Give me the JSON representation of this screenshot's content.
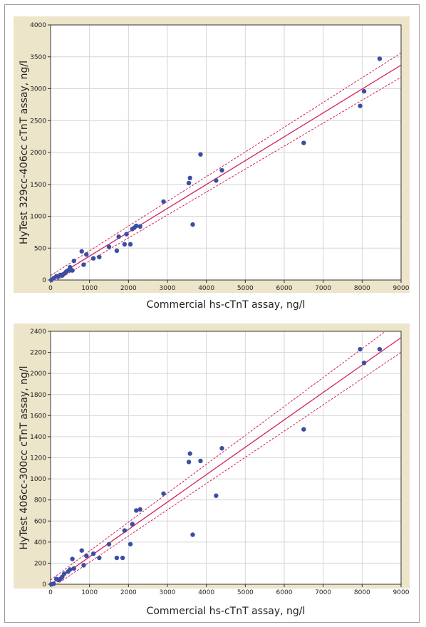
{
  "chart_data": [
    {
      "type": "scatter",
      "xlabel": "Commercial hs-cTnT assay, ng/l",
      "ylabel": "HyTest 329cc-406cc cTnT assay, ng/l",
      "xlim": [
        0,
        9000
      ],
      "ylim": [
        0,
        4000
      ],
      "xticks": [
        "0",
        "1000",
        "2000",
        "3000",
        "4000",
        "5000",
        "6000",
        "7000",
        "8000",
        "9000"
      ],
      "yticks": [
        "0",
        "500",
        "1000",
        "1500",
        "2000",
        "2500",
        "3000",
        "3500",
        "4000"
      ],
      "grid": true,
      "colors": {
        "points": "#3a4fa3",
        "fit": "#d2215a",
        "background": "#ede5c9"
      },
      "fit_line": {
        "x": [
          0,
          9000
        ],
        "y": [
          0,
          3370
        ]
      },
      "confidence_band": {
        "upper": {
          "x": [
            0,
            9000
          ],
          "y": [
            70,
            3560
          ]
        },
        "lower": {
          "x": [
            0,
            9000
          ],
          "y": [
            -60,
            3180
          ]
        }
      },
      "points": {
        "x": [
          20,
          80,
          150,
          190,
          250,
          300,
          350,
          400,
          450,
          500,
          520,
          560,
          600,
          800,
          850,
          920,
          1100,
          1250,
          1500,
          1700,
          1750,
          1900,
          1950,
          2050,
          2100,
          2150,
          2200,
          2300,
          2900,
          3550,
          3580,
          3650,
          3850,
          4250,
          4400,
          6500,
          7950,
          8050,
          8450
        ],
        "y": [
          0,
          30,
          60,
          50,
          80,
          70,
          100,
          130,
          150,
          200,
          160,
          150,
          300,
          450,
          240,
          400,
          340,
          360,
          520,
          460,
          680,
          560,
          720,
          560,
          800,
          820,
          850,
          840,
          1230,
          1520,
          1600,
          870,
          1970,
          1560,
          1720,
          2150,
          2730,
          2960,
          3470
        ]
      }
    },
    {
      "type": "scatter",
      "xlabel": "Commercial hs-cTnT assay, ng/l",
      "ylabel": "HyTest 406cc-300cc cTnT assay, ng/l",
      "xlim": [
        0,
        9000
      ],
      "ylim": [
        0,
        2400
      ],
      "xticks": [
        "0",
        "1000",
        "2000",
        "3000",
        "4000",
        "5000",
        "6000",
        "7000",
        "8000",
        "9000"
      ],
      "yticks": [
        "0",
        "200",
        "400",
        "600",
        "800",
        "1000",
        "1200",
        "1400",
        "1600",
        "1800",
        "2000",
        "2200",
        "2400"
      ],
      "grid": true,
      "colors": {
        "points": "#3a4fa3",
        "fit": "#d2215a",
        "background": "#ede5c9"
      },
      "fit_line": {
        "x": [
          0,
          9000
        ],
        "y": [
          0,
          2340
        ]
      },
      "confidence_band": {
        "upper": {
          "x": [
            0,
            9000
          ],
          "y": [
            40,
            2510
          ]
        },
        "lower": {
          "x": [
            0,
            9000
          ],
          "y": [
            -40,
            2200
          ]
        }
      },
      "points": {
        "x": [
          20,
          80,
          150,
          200,
          250,
          300,
          350,
          450,
          500,
          560,
          600,
          800,
          850,
          920,
          1100,
          1250,
          1500,
          1700,
          1850,
          1900,
          2050,
          2100,
          2200,
          2300,
          2900,
          3550,
          3580,
          3650,
          3850,
          4250,
          4400,
          6500,
          7950,
          8050,
          8450
        ],
        "y": [
          0,
          5,
          50,
          40,
          50,
          70,
          100,
          120,
          140,
          240,
          150,
          320,
          180,
          270,
          290,
          250,
          380,
          250,
          250,
          510,
          380,
          570,
          700,
          710,
          860,
          1160,
          1240,
          470,
          1170,
          840,
          1290,
          1470,
          2230,
          2100,
          2230
        ]
      }
    }
  ]
}
